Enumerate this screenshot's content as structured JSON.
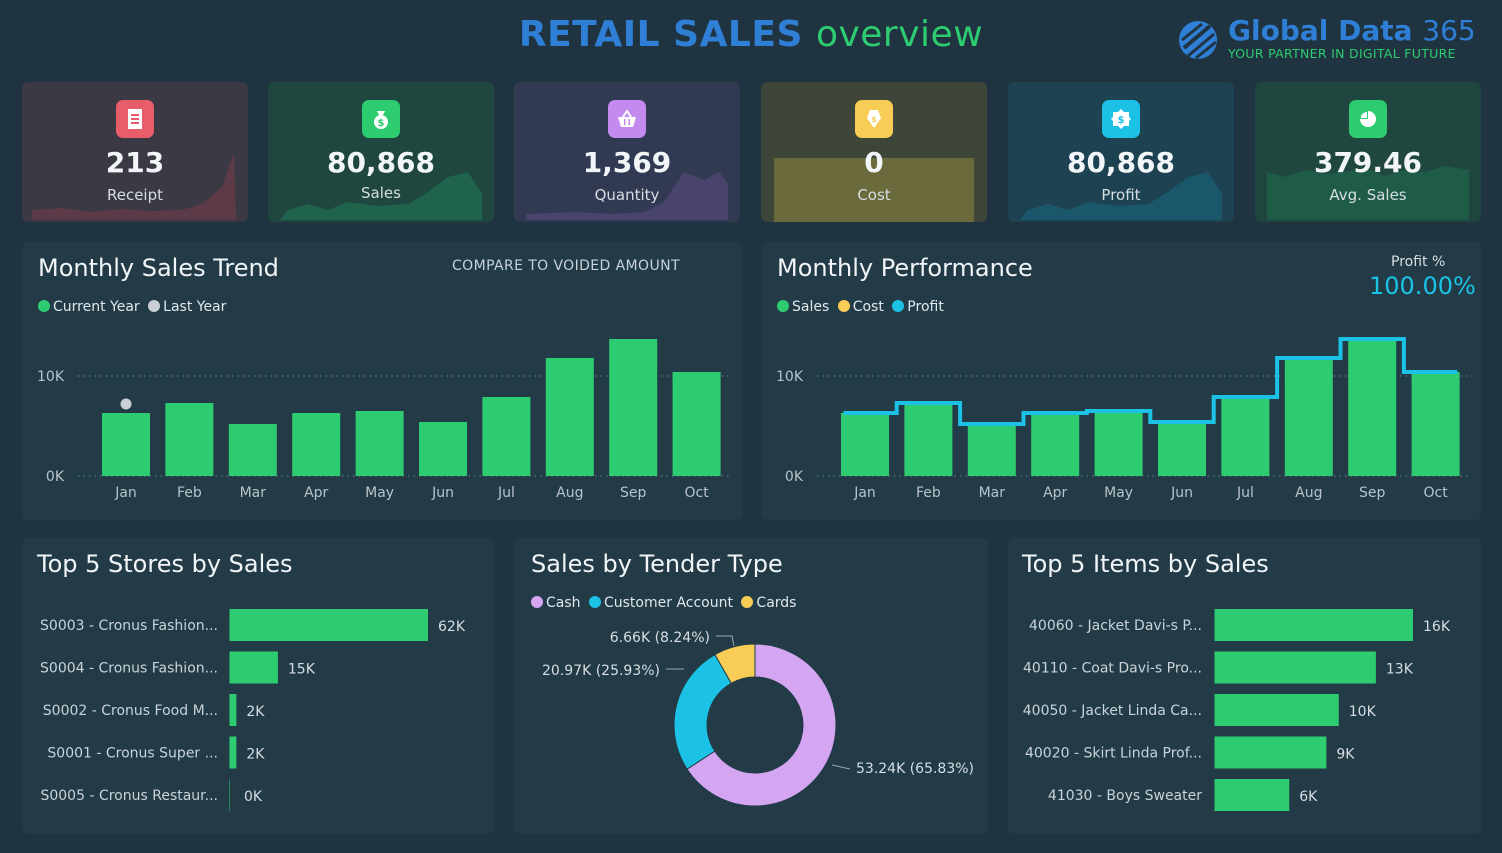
{
  "header": {
    "title_part1": "RETAIL SALES",
    "title_part2": "overview",
    "logo_name_part1": "Global Data",
    "logo_name_part2": "365",
    "logo_tagline": "YOUR PARTNER IN DIGITAL FUTURE"
  },
  "kpis": [
    {
      "value": "213",
      "label": "Receipt",
      "icon": "receipt-icon",
      "color": "#e85d6a"
    },
    {
      "value": "80,868",
      "label": "Sales",
      "icon": "money-bag-icon",
      "color": "#2ecc71"
    },
    {
      "value": "1,369",
      "label": "Quantity",
      "icon": "basket-icon",
      "color": "#c48af0"
    },
    {
      "value": "0",
      "label": "Cost",
      "icon": "price-tag-icon",
      "color": "#f7cd55"
    },
    {
      "value": "80,868",
      "label": "Profit",
      "icon": "dollar-badge-icon",
      "color": "#1cc2e6"
    },
    {
      "value": "379.46",
      "label": "Avg. Sales",
      "icon": "pie-icon",
      "color": "#2ecc71"
    }
  ],
  "trend": {
    "title": "Monthly Sales Trend",
    "compare_label": "COMPARE TO VOIDED AMOUNT",
    "legend": [
      {
        "label": "Current Year",
        "color": "#2ecc71"
      },
      {
        "label": "Last Year",
        "color": "#c9cfd3"
      }
    ]
  },
  "performance": {
    "title": "Monthly Performance",
    "profit_pct_label": "Profit %",
    "profit_pct_value": "100.00%",
    "legend": [
      {
        "label": "Sales",
        "color": "#2ecc71"
      },
      {
        "label": "Cost",
        "color": "#f7cd55"
      },
      {
        "label": "Profit",
        "color": "#1cc2e6"
      }
    ]
  },
  "stores": {
    "title": "Top 5 Stores by Sales"
  },
  "tender": {
    "title": "Sales by Tender Type",
    "legend": [
      {
        "label": "Cash",
        "color": "#d4a5f0"
      },
      {
        "label": "Customer Account",
        "color": "#1cc2e6"
      },
      {
        "label": "Cards",
        "color": "#f7cd55"
      }
    ]
  },
  "items": {
    "title": "Top 5 Items by Sales"
  },
  "chart_data": [
    {
      "id": "monthly-sales-trend",
      "type": "bar",
      "title": "Monthly Sales Trend",
      "categories": [
        "Jan",
        "Feb",
        "Mar",
        "Apr",
        "May",
        "Jun",
        "Jul",
        "Aug",
        "Sep",
        "Oct"
      ],
      "series": [
        {
          "name": "Current Year",
          "values": [
            6300,
            7300,
            5200,
            6300,
            6500,
            5400,
            7900,
            11800,
            13700,
            10400
          ]
        },
        {
          "name": "Last Year",
          "values": [
            7200,
            null,
            null,
            null,
            null,
            null,
            null,
            null,
            null,
            null
          ]
        }
      ],
      "yticks": [
        "0K",
        "10K"
      ],
      "ylim": [
        0,
        15000
      ]
    },
    {
      "id": "monthly-performance",
      "type": "bar",
      "title": "Monthly Performance",
      "categories": [
        "Jan",
        "Feb",
        "Mar",
        "Apr",
        "May",
        "Jun",
        "Jul",
        "Aug",
        "Sep",
        "Oct"
      ],
      "series": [
        {
          "name": "Sales",
          "values": [
            6300,
            7300,
            5200,
            6300,
            6500,
            5400,
            7900,
            11800,
            13700,
            10400
          ]
        },
        {
          "name": "Cost",
          "values": [
            0,
            0,
            0,
            0,
            0,
            0,
            0,
            0,
            0,
            0
          ]
        },
        {
          "name": "Profit",
          "values": [
            6300,
            7300,
            5200,
            6300,
            6500,
            5400,
            7900,
            11800,
            13700,
            10400
          ]
        }
      ],
      "yticks": [
        "0K",
        "10K"
      ],
      "ylim": [
        0,
        15000
      ]
    },
    {
      "id": "top-stores",
      "type": "bar",
      "orientation": "horizontal",
      "title": "Top 5 Stores by Sales",
      "categories": [
        "S0003 - Cronus Fashion...",
        "S0004 - Cronus Fashion...",
        "S0002 - Cronus Food M...",
        "S0001 - Cronus Super ...",
        "S0005 - Cronus Restaur..."
      ],
      "values": [
        62,
        15,
        2,
        2,
        0
      ],
      "labels": [
        "62K",
        "15K",
        "2K",
        "2K",
        "0K"
      ]
    },
    {
      "id": "tender-donut",
      "type": "pie",
      "title": "Sales by Tender Type",
      "categories": [
        "Cash",
        "Customer Account",
        "Cards"
      ],
      "values": [
        53.24,
        20.97,
        6.66
      ],
      "labels": [
        "53.24K (65.83%)",
        "20.97K (25.93%)",
        "6.66K (8.24%)"
      ]
    },
    {
      "id": "top-items",
      "type": "bar",
      "orientation": "horizontal",
      "title": "Top 5 Items by Sales",
      "categories": [
        "40060 - Jacket Davi-s P...",
        "40110 - Coat Davi-s Pro...",
        "40050 - Jacket Linda Ca...",
        "40020 - Skirt Linda Prof...",
        "41030 - Boys Sweater"
      ],
      "values": [
        16,
        13,
        10,
        9,
        6
      ],
      "labels": [
        "16K",
        "13K",
        "10K",
        "9K",
        "6K"
      ]
    }
  ]
}
